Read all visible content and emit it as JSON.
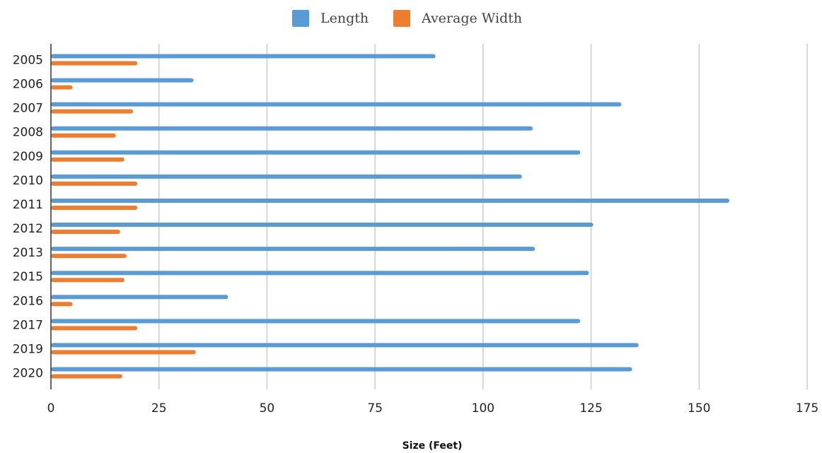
{
  "chart_data": {
    "type": "bar",
    "orientation": "horizontal",
    "title": "",
    "xlabel": "Size (Feet)",
    "ylabel": "",
    "xlim": [
      0,
      175
    ],
    "x_ticks": [
      0,
      25,
      50,
      75,
      100,
      125,
      150,
      175
    ],
    "grid": "vertical",
    "legend_position": "top-center",
    "categories": [
      "2005",
      "2006",
      "2007",
      "2008",
      "2009",
      "2010",
      "2011",
      "2012",
      "2013",
      "2015",
      "2016",
      "2017",
      "2019",
      "2020"
    ],
    "series": [
      {
        "name": "Length",
        "color": "#5b9bd5",
        "values": [
          89,
          33,
          132,
          111.5,
          122.5,
          109,
          157,
          125.5,
          112,
          124.5,
          41,
          122.5,
          136,
          134.5
        ]
      },
      {
        "name": "Average Width",
        "color": "#ed7d31",
        "values": [
          20,
          5,
          19,
          15,
          17,
          20,
          20,
          16,
          17.5,
          17,
          5,
          20,
          33.5,
          16.5
        ]
      }
    ]
  }
}
